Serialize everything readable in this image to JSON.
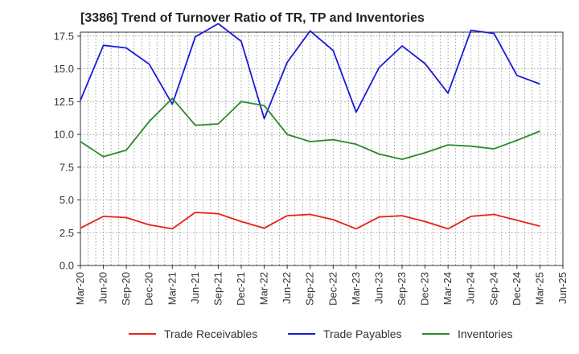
{
  "chart_data": {
    "type": "line",
    "title": "[3386]  Trend of Turnover Ratio of TR, TP and Inventories",
    "xlabel": "",
    "ylabel": "",
    "x_ticks": [
      "Mar-20",
      "Jun-20",
      "Sep-20",
      "Dec-20",
      "Mar-21",
      "Jun-21",
      "Sep-21",
      "Dec-21",
      "Mar-22",
      "Jun-22",
      "Sep-22",
      "Dec-22",
      "Mar-23",
      "Jun-23",
      "Sep-23",
      "Dec-23",
      "Mar-24",
      "Jun-24",
      "Sep-24",
      "Dec-24",
      "Mar-25",
      "Jun-25"
    ],
    "y_ticks": [
      "0.0",
      "2.5",
      "5.0",
      "7.5",
      "10.0",
      "12.5",
      "15.0",
      "17.5"
    ],
    "ylim": [
      0,
      17.8
    ],
    "grid": true,
    "legend_position": "bottom",
    "series": [
      {
        "name": "Trade Receivables",
        "color": "#e8221a",
        "x": [
          "Mar-20",
          "Jun-20",
          "Sep-20",
          "Dec-20",
          "Mar-21",
          "Jun-21",
          "Sep-21",
          "Dec-21",
          "Mar-22",
          "Jun-22",
          "Sep-22",
          "Dec-22",
          "Mar-23",
          "Jun-23",
          "Sep-23",
          "Dec-23",
          "Mar-24",
          "Jun-24",
          "Sep-24",
          "Dec-24",
          "Mar-25"
        ],
        "values": [
          2.85,
          3.75,
          3.65,
          3.1,
          2.8,
          4.05,
          3.95,
          3.35,
          2.85,
          3.8,
          3.9,
          3.5,
          2.8,
          3.7,
          3.8,
          3.35,
          2.8,
          3.75,
          3.9,
          3.45,
          3.0
        ]
      },
      {
        "name": "Trade Payables",
        "color": "#1a1ad8",
        "x": [
          "Mar-20",
          "Jun-20",
          "Sep-20",
          "Dec-20",
          "Mar-21",
          "Jun-21",
          "Sep-21",
          "Dec-21",
          "Mar-22",
          "Jun-22",
          "Sep-22",
          "Dec-22",
          "Mar-23",
          "Jun-23",
          "Sep-23",
          "Dec-23",
          "Mar-24",
          "Jun-24",
          "Sep-24",
          "Dec-24",
          "Mar-25"
        ],
        "values": [
          12.6,
          16.8,
          16.6,
          15.35,
          12.3,
          17.45,
          18.45,
          17.1,
          11.2,
          15.5,
          17.9,
          16.4,
          11.7,
          15.1,
          16.75,
          15.4,
          13.15,
          17.95,
          17.7,
          14.5,
          13.85
        ]
      },
      {
        "name": "Inventories",
        "color": "#2a8a2a",
        "x": [
          "Mar-20",
          "Jun-20",
          "Sep-20",
          "Dec-20",
          "Mar-21",
          "Jun-21",
          "Sep-21",
          "Dec-21",
          "Mar-22",
          "Jun-22",
          "Sep-22",
          "Dec-22",
          "Mar-23",
          "Jun-23",
          "Sep-23",
          "Dec-23",
          "Mar-24",
          "Jun-24",
          "Sep-24",
          "Dec-24",
          "Mar-25"
        ],
        "values": [
          9.45,
          8.3,
          8.8,
          11.0,
          12.75,
          10.7,
          10.8,
          12.5,
          12.2,
          10.0,
          9.45,
          9.6,
          9.25,
          8.5,
          8.1,
          8.6,
          9.2,
          9.1,
          8.9,
          9.55,
          10.25
        ]
      }
    ]
  }
}
